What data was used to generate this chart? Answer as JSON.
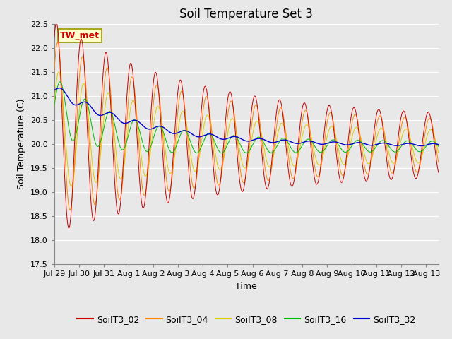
{
  "title": "Soil Temperature Set 3",
  "xlabel": "Time",
  "ylabel": "Soil Temperature (C)",
  "ylim": [
    17.5,
    22.5
  ],
  "series_names": [
    "SoilT3_02",
    "SoilT3_04",
    "SoilT3_08",
    "SoilT3_16",
    "SoilT3_32"
  ],
  "series_colors": [
    "#cc0000",
    "#ff8800",
    "#ddcc00",
    "#00bb00",
    "#0000cc"
  ],
  "annotation_text": "TW_met",
  "annotation_color": "#cc0000",
  "annotation_bg": "#ffffcc",
  "annotation_border": "#999900",
  "plot_bg_color": "#e8e8e8",
  "title_fontsize": 12,
  "axis_fontsize": 9,
  "tick_fontsize": 8,
  "legend_fontsize": 9,
  "x_tick_labels": [
    "Jul 29",
    "Jul 30",
    "Jul 31",
    "Aug 1",
    "Aug 2",
    "Aug 3",
    "Aug 4",
    "Aug 5",
    "Aug 6",
    "Aug 7",
    "Aug 8",
    "Aug 9",
    "Aug 10",
    "Aug 11",
    "Aug 12",
    "Aug 13"
  ],
  "n_points": 3000,
  "duration_days": 15.5
}
